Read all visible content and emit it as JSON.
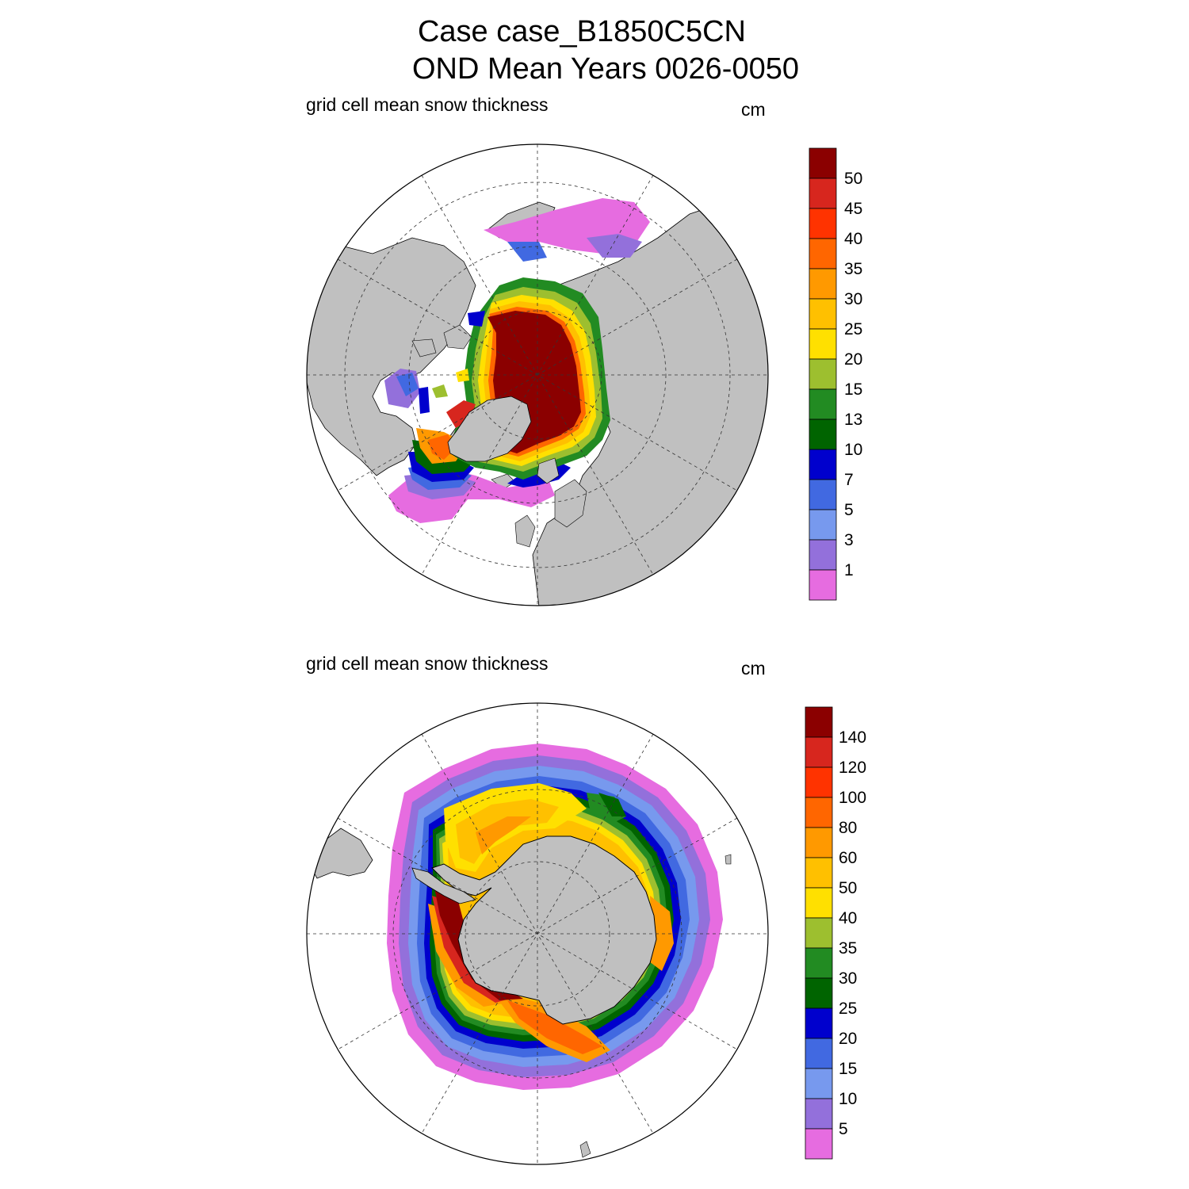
{
  "title": {
    "line1": "Case case_B1850C5CN",
    "line2": "OND Mean   Years 0026-0050"
  },
  "panels": [
    {
      "hemisphere": "north",
      "subtitle": "grid cell mean snow thickness",
      "units": "cm",
      "colorbar_labels": [
        "50",
        "45",
        "40",
        "35",
        "30",
        "25",
        "20",
        "15",
        "13",
        "10",
        "7",
        "5",
        "3",
        "1"
      ]
    },
    {
      "hemisphere": "south",
      "subtitle": "grid cell mean snow thickness",
      "units": "cm",
      "colorbar_labels": [
        "140",
        "120",
        "100",
        "80",
        "60",
        "50",
        "40",
        "35",
        "30",
        "25",
        "20",
        "15",
        "10",
        "5"
      ]
    }
  ],
  "colors": {
    "land": "#c0c0c0",
    "palette_top_to_bottom": [
      "#8b0000",
      "#d7261e",
      "#ff3300",
      "#ff6600",
      "#ff9900",
      "#ffc000",
      "#ffe000",
      "#9dbf2f",
      "#228b22",
      "#006400",
      "#0000cd",
      "#4169e1",
      "#7799ee",
      "#9370db",
      "#e66ce0"
    ]
  }
}
